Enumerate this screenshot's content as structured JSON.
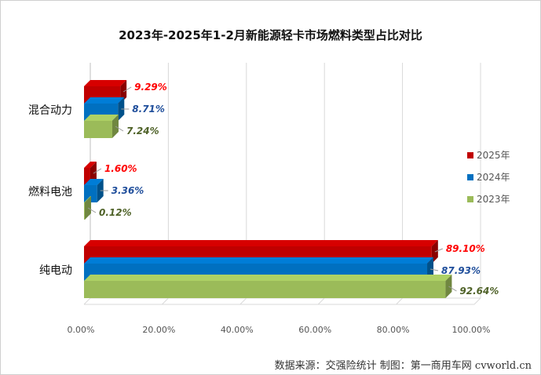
{
  "title": "2023年-2025年1-2月新能源轻卡市场燃料类型占比对比",
  "credit": "数据来源：交强险统计  制图：第一商用车网 cvworld.cn",
  "chart_data": {
    "type": "bar",
    "orientation": "horizontal",
    "style": "3d-clustered",
    "categories": [
      "混合动力",
      "燃料电池",
      "纯电动"
    ],
    "series": [
      {
        "name": "2025年",
        "color": "#c00000",
        "label_color": "#ff0000",
        "values": [
          9.29,
          1.6,
          89.1
        ],
        "labels": [
          "9.29%",
          "1.60%",
          "89.10%"
        ]
      },
      {
        "name": "2024年",
        "color": "#0070c0",
        "label_color": "#1f4e9b",
        "values": [
          8.71,
          3.36,
          87.93
        ],
        "labels": [
          "8.71%",
          "3.36%",
          "87.93%"
        ]
      },
      {
        "name": "2023年",
        "color": "#9bbb59",
        "label_color": "#4f6228",
        "values": [
          7.24,
          0.12,
          92.64
        ],
        "labels": [
          "7.24%",
          "0.12%",
          "92.64%"
        ]
      }
    ],
    "xlim": [
      0,
      100
    ],
    "x_ticks": [
      "0.00%",
      "20.00%",
      "40.00%",
      "60.00%",
      "80.00%",
      "100.00%"
    ],
    "grid": true,
    "legend_position": "right"
  }
}
